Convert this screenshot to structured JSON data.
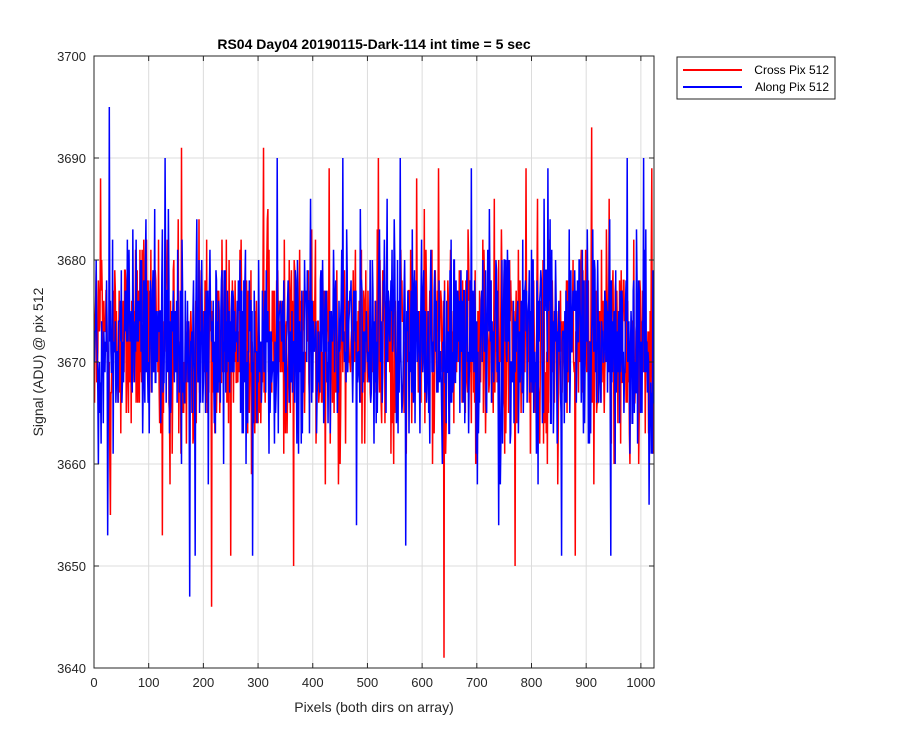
{
  "chart_data": {
    "type": "line",
    "title": "RS04 Day04 20190115-Dark-114 int time = 5 sec",
    "xlabel": "Pixels (both dirs on array)",
    "ylabel": "Signal (ADU) @ pix 512",
    "xlim": [
      0,
      1024
    ],
    "ylim": [
      3640,
      3700
    ],
    "xticks": [
      0,
      100,
      200,
      300,
      400,
      500,
      600,
      700,
      800,
      900,
      1000
    ],
    "yticks": [
      3640,
      3650,
      3660,
      3670,
      3680,
      3690,
      3700
    ],
    "xtick_labels": [
      "0",
      "100",
      "200",
      "300",
      "400",
      "500",
      "600",
      "700",
      "800",
      "900",
      "1000"
    ],
    "ytick_labels": [
      "3640",
      "3650",
      "3660",
      "3670",
      "3680",
      "3690",
      "3700"
    ],
    "grid": true,
    "legend_position": "outside-top-right",
    "series": [
      {
        "name": "Cross Pix 512",
        "color": "#ff0000",
        "x_start": 1,
        "x_step": 1,
        "count": 1024,
        "baseline": 3672,
        "spread": 6.5,
        "extremes": [
          {
            "x": 12,
            "y": 3688
          },
          {
            "x": 30,
            "y": 3655
          },
          {
            "x": 88,
            "y": 3681
          },
          {
            "x": 125,
            "y": 3653
          },
          {
            "x": 160,
            "y": 3691
          },
          {
            "x": 215,
            "y": 3646
          },
          {
            "x": 250,
            "y": 3651
          },
          {
            "x": 310,
            "y": 3691
          },
          {
            "x": 365,
            "y": 3650
          },
          {
            "x": 430,
            "y": 3689
          },
          {
            "x": 520,
            "y": 3690
          },
          {
            "x": 590,
            "y": 3688
          },
          {
            "x": 630,
            "y": 3689
          },
          {
            "x": 640,
            "y": 3641
          },
          {
            "x": 770,
            "y": 3650
          },
          {
            "x": 790,
            "y": 3689
          },
          {
            "x": 880,
            "y": 3651
          },
          {
            "x": 910,
            "y": 3693
          },
          {
            "x": 1020,
            "y": 3689
          }
        ]
      },
      {
        "name": "Along Pix 512",
        "color": "#0000ff",
        "x_start": 1,
        "x_step": 1,
        "count": 1024,
        "baseline": 3672,
        "spread": 6.5,
        "extremes": [
          {
            "x": 28,
            "y": 3695
          },
          {
            "x": 25,
            "y": 3653
          },
          {
            "x": 130,
            "y": 3690
          },
          {
            "x": 175,
            "y": 3647
          },
          {
            "x": 185,
            "y": 3651
          },
          {
            "x": 290,
            "y": 3651
          },
          {
            "x": 335,
            "y": 3690
          },
          {
            "x": 455,
            "y": 3690
          },
          {
            "x": 480,
            "y": 3654
          },
          {
            "x": 560,
            "y": 3690
          },
          {
            "x": 570,
            "y": 3652
          },
          {
            "x": 690,
            "y": 3689
          },
          {
            "x": 740,
            "y": 3654
          },
          {
            "x": 830,
            "y": 3689
          },
          {
            "x": 855,
            "y": 3651
          },
          {
            "x": 945,
            "y": 3651
          },
          {
            "x": 975,
            "y": 3690
          },
          {
            "x": 1005,
            "y": 3690
          },
          {
            "x": 1015,
            "y": 3656
          }
        ]
      }
    ]
  }
}
